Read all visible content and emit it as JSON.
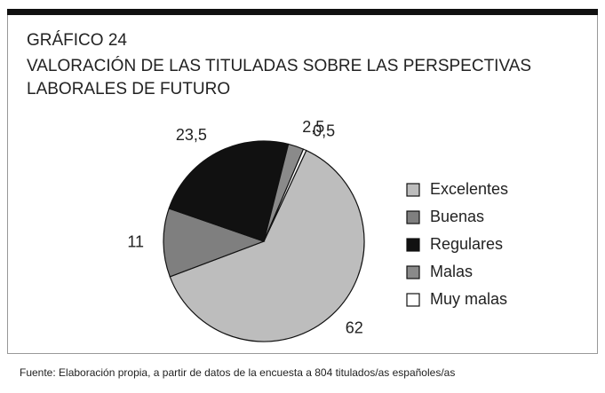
{
  "chart_data": {
    "type": "pie",
    "title": "GRÁFICO 24",
    "subtitle": [
      "VALORACIÓN DE LAS TITULADAS SOBRE LAS PERSPECTIVAS",
      "LABORALES DE FUTURO"
    ],
    "categories": [
      "Excelentes",
      "Buenas",
      "Regulares",
      "Malas",
      "Muy malas"
    ],
    "values": [
      62,
      11,
      23.5,
      2.5,
      0.5
    ],
    "value_labels": [
      "62",
      "11",
      "23,5",
      "2,5",
      "0,5"
    ],
    "colors": [
      "#bdbdbd",
      "#7f7f7f",
      "#111111",
      "#8a8a8a",
      "#ffffff"
    ],
    "legend": "right",
    "source": "Fuente: Elaboración propia, a partir de datos de la encuesta a 804 titulados/as españoles/as"
  }
}
